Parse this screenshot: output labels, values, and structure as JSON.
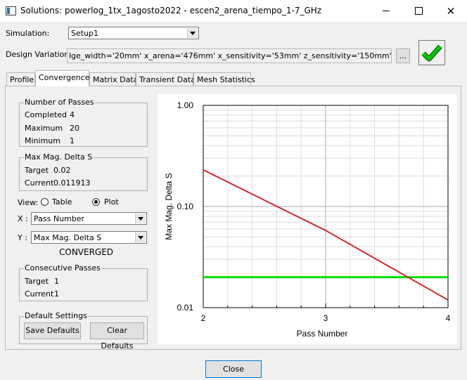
{
  "window": {
    "title": "Solutions: powerlog_1tx_1agosto2022 - escen2_arena_tiempo_1-7_GHz"
  },
  "simulation": {
    "label": "Simulation:",
    "value": "Setup1"
  },
  "design_variation": {
    "label": "Design Variation:",
    "value": "lge_width='20mm' x_arena='476mm' x_sensitivity='53mm' z_sensitivity='150mm' z_soil='547.14mm'",
    "more_label": "..."
  },
  "tabs": [
    {
      "label": "Profile"
    },
    {
      "label": "Convergence"
    },
    {
      "label": "Matrix Data"
    },
    {
      "label": "Transient Data"
    },
    {
      "label": "Mesh Statistics"
    }
  ],
  "passes": {
    "title": "Number of Passes",
    "completed_label": "Completed",
    "completed": "4",
    "maximum_label": "Maximum",
    "maximum": "20",
    "minimum_label": "Minimum",
    "minimum": "1"
  },
  "delta": {
    "title": "Max Mag. Delta S",
    "target_label": "Target",
    "target": "0.02",
    "current_label": "Current",
    "current": "0.011913"
  },
  "view": {
    "label": "View:",
    "table_label": "Table",
    "plot_label": "Plot",
    "selected": "Plot"
  },
  "x_axis_select": {
    "label": "X :",
    "value": "Pass Number"
  },
  "y_axis_select": {
    "label": "Y :",
    "value": "Max Mag. Delta S"
  },
  "status": "CONVERGED",
  "consecutive": {
    "title": "Consecutive Passes",
    "target_label": "Target",
    "target": "1",
    "current_label": "Current",
    "current": "1"
  },
  "defaults": {
    "title": "Default Settings",
    "save_label": "Save Defaults",
    "clear_label": "Clear Defaults"
  },
  "close_label": "Close",
  "colors": {
    "series": "#d42a2a",
    "target_line": "#00e000",
    "check": "#00c800"
  },
  "chart_data": {
    "type": "line",
    "xlabel": "Pass Number",
    "ylabel": "Max Mag. Delta S",
    "xscale": "linear",
    "yscale": "log",
    "xlim": [
      2,
      4
    ],
    "ylim": [
      0.01,
      1.0
    ],
    "x_ticks": [
      "2",
      "3",
      "4"
    ],
    "y_ticks": [
      "1.00",
      "0.10",
      "0.01"
    ],
    "grid": true,
    "series": [
      {
        "x": [
          2,
          3,
          4
        ],
        "y": [
          0.23,
          0.058,
          0.011913
        ]
      }
    ],
    "target_line": 0.02
  }
}
